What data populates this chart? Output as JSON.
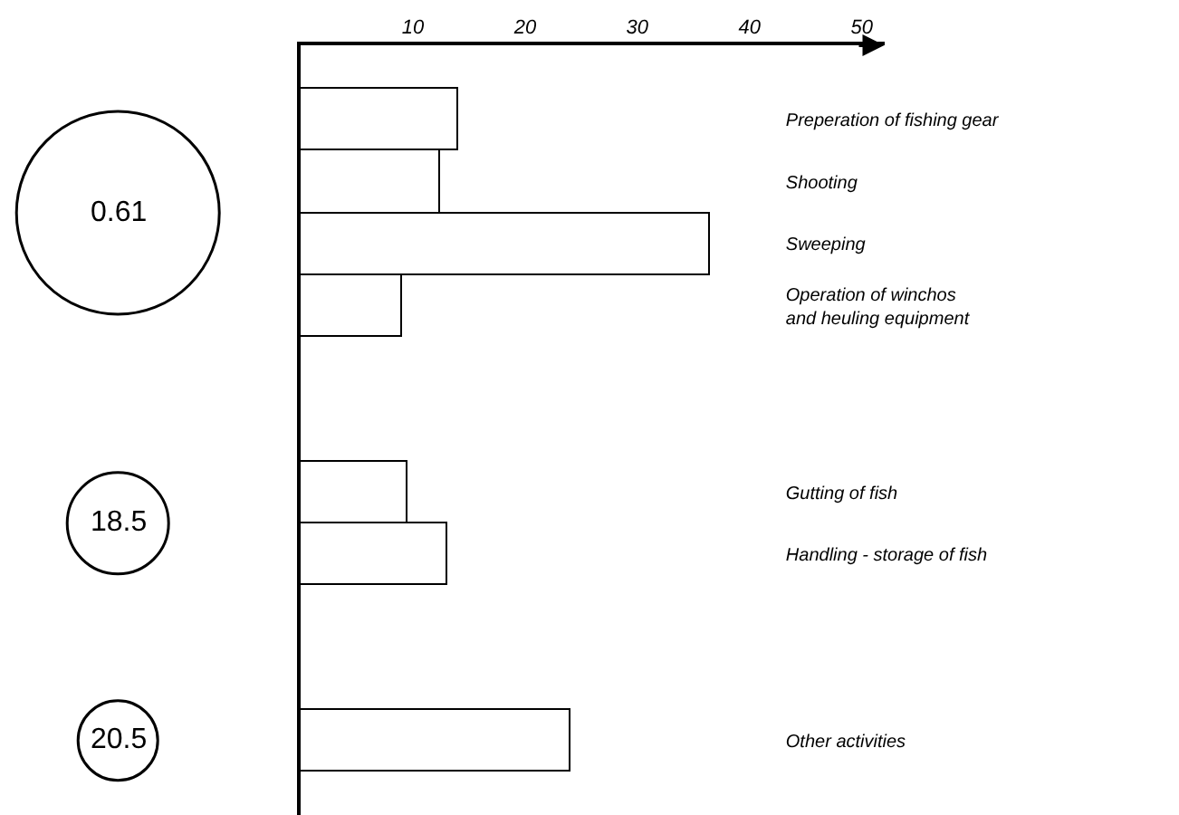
{
  "chart_data": {
    "type": "bar",
    "orientation": "horizontal",
    "categories": [
      "Preperation of fishing gear",
      "Shooting",
      "Sweeping",
      "Operation of winchos\nand heuling equipment",
      null,
      null,
      "Gutting of fish",
      "Handling - storage of fish",
      null,
      null,
      "Other activities"
    ],
    "values": [
      14,
      12.5,
      36.5,
      9,
      null,
      null,
      9.5,
      13,
      null,
      null,
      24
    ],
    "color": "#ffffff",
    "xlim": [
      0,
      52
    ],
    "xticks": [
      10,
      20,
      30,
      40,
      50
    ],
    "annotations": [
      "0.61",
      "18.5",
      "20.5"
    ],
    "legend": false
  }
}
